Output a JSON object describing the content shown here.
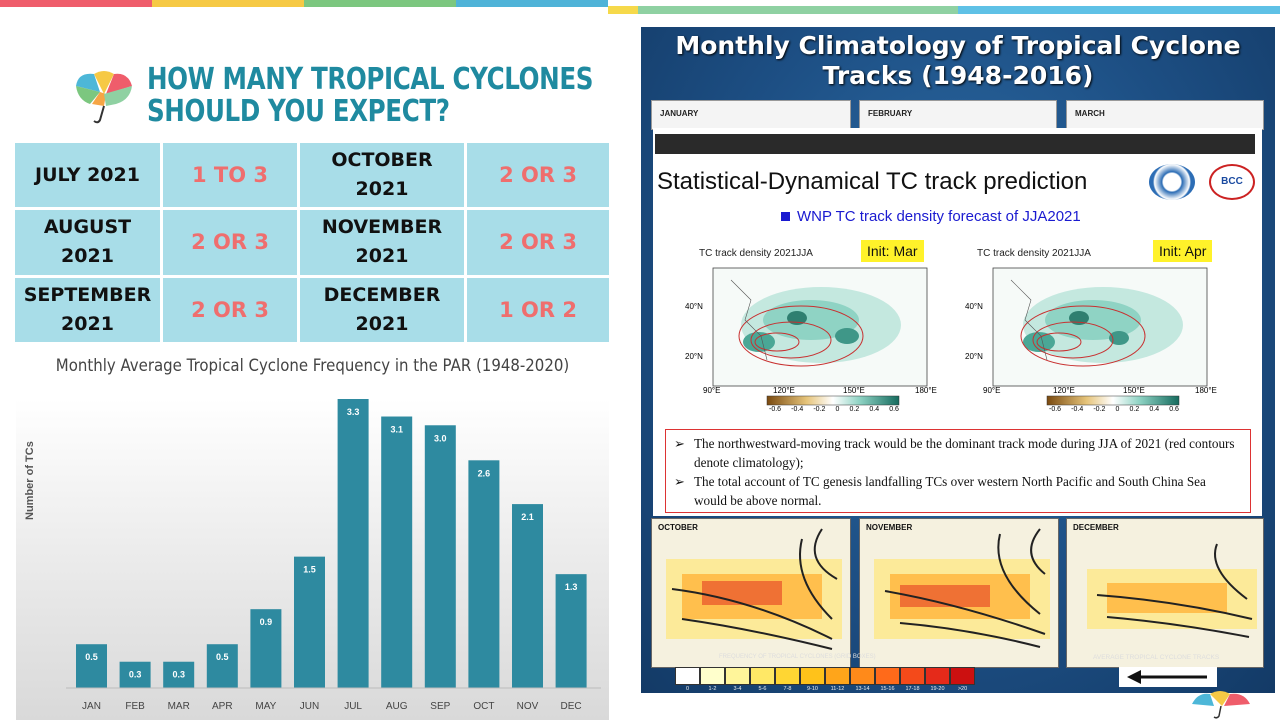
{
  "heading": {
    "line1": "HOW MANY TROPICAL CYCLONES",
    "line2": "SHOULD YOU EXPECT?"
  },
  "colors": {
    "accent_teal": "#1f8aa0",
    "value_red": "#ef6e6e",
    "cell_bg": "#a8dde8",
    "bar": "#2e8aa0"
  },
  "forecast": [
    {
      "month_line1": "JULY 2021",
      "month_line2": "",
      "value": "1 TO 3"
    },
    {
      "month_line1": "OCTOBER",
      "month_line2": "2021",
      "value": "2 OR 3"
    },
    {
      "month_line1": "AUGUST",
      "month_line2": "2021",
      "value": "2 OR 3"
    },
    {
      "month_line1": "NOVEMBER",
      "month_line2": "2021",
      "value": "2 OR 3"
    },
    {
      "month_line1": "SEPTEMBER",
      "month_line2": "2021",
      "value": "2 OR 3"
    },
    {
      "month_line1": "DECEMBER",
      "month_line2": "2021",
      "value": "1 OR 2"
    }
  ],
  "chart_data": {
    "type": "bar",
    "title": "Monthly Average Tropical Cyclone Frequency in the PAR (1948-2020)",
    "xlabel": "",
    "ylabel": "Number of TCs",
    "categories": [
      "JAN",
      "FEB",
      "MAR",
      "APR",
      "MAY",
      "JUN",
      "JUL",
      "AUG",
      "SEP",
      "OCT",
      "NOV",
      "DEC"
    ],
    "values": [
      0.5,
      0.3,
      0.3,
      0.5,
      0.9,
      1.5,
      3.3,
      3.1,
      3.0,
      2.6,
      2.1,
      1.3
    ],
    "value_labels": [
      "0.5",
      "0.3",
      "0.3",
      "0.5",
      "0.9",
      "1.5",
      "3.3",
      "3.1",
      "3.0",
      "2.6",
      "2.1",
      "1.3"
    ],
    "ylim": [
      0,
      3.3
    ],
    "grid": false,
    "legend": "none"
  },
  "right": {
    "title_line1": "Monthly Climatology of Tropical Cyclone",
    "title_line2": "Tracks (1948-2016)",
    "top_maps": [
      "JANUARY",
      "FEBRUARY",
      "MARCH"
    ],
    "slide": {
      "title": "Statistical-Dynamical TC track prediction",
      "badge_right": "BCC",
      "subtitle": "WNP TC track density forecast of JJA2021",
      "maps": [
        {
          "title": "TC track density 2021JJA",
          "init": "Init: Mar"
        },
        {
          "title": "TC track density 2021JJA",
          "init": "Init: Apr"
        }
      ],
      "lat_labels": [
        "40°N",
        "20°N"
      ],
      "lon_labels": [
        "90°E",
        "120°E",
        "150°E",
        "180°E"
      ],
      "colorbar_labels": [
        "-0.6",
        "-0.4",
        "-0.2",
        "0",
        "0.2",
        "0.4",
        "0.6"
      ],
      "notes": [
        "The northwestward-moving track would be the dominant track mode during JJA of 2021 (red contours denote climatology);",
        "The total account of TC genesis landfalling TCs over western North Pacific and South China Sea would be above normal."
      ],
      "bullet_glyph": "➢"
    },
    "bottom_maps": [
      "OCTOBER",
      "NOVEMBER",
      "DECEMBER"
    ],
    "legend_title": "FREQUENCY OF TROPICAL CYCLONES (GRID BOXES)",
    "legend_labels": [
      "0",
      "1-2",
      "3-4",
      "5-6",
      "7-8",
      "9-10",
      "11-12",
      "13-14",
      "15-16",
      "17-18",
      "19-20",
      ">20"
    ],
    "legend_colors": [
      "#ffffff",
      "#ffffcc",
      "#fff59a",
      "#ffe866",
      "#ffd633",
      "#ffc21a",
      "#ffa51a",
      "#ff8a1a",
      "#ff6a1a",
      "#f44a1a",
      "#e52a1a",
      "#cc1010"
    ],
    "avg_tracks_title": "AVERAGE TROPICAL CYCLONE TRACKS"
  }
}
